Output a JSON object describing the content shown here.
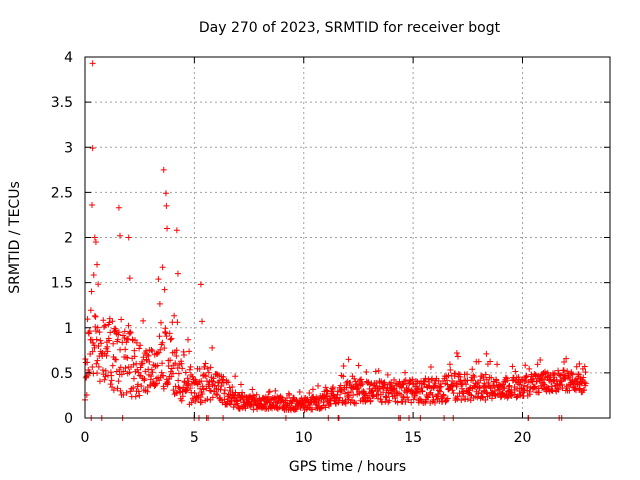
{
  "chart_data": {
    "type": "scatter",
    "title": "Day 270 of 2023, SRMTID for receiver bogt",
    "xlabel": "GPS time / hours",
    "ylabel": "SRMTID / TECUs",
    "xlim": [
      0,
      24
    ],
    "ylim": [
      0,
      4
    ],
    "x_ticks": [
      0,
      5,
      10,
      15,
      20
    ],
    "x_tick_labels": [
      "0",
      "5",
      "10",
      "15",
      "20"
    ],
    "y_ticks": [
      0,
      0.5,
      1,
      1.5,
      2,
      2.5,
      3,
      3.5,
      4
    ],
    "y_tick_labels": [
      "0",
      "0.5",
      "1",
      "1.5",
      "2",
      "2.5",
      "3",
      "3.5",
      "4"
    ],
    "grid": true,
    "marker": "+",
    "color": "#ff0000",
    "x_data_range": [
      0,
      22.9
    ],
    "sampling_interval_hours": 0.0167,
    "series": [
      {
        "name": "SRMTID",
        "profile": [
          {
            "x": 0.0,
            "typical": 0.45,
            "spread": 0.25
          },
          {
            "x": 0.3,
            "typical": 0.9,
            "spread": 0.55
          },
          {
            "x": 0.6,
            "typical": 0.6,
            "spread": 0.45
          },
          {
            "x": 1.0,
            "typical": 0.8,
            "spread": 0.4
          },
          {
            "x": 1.5,
            "typical": 0.7,
            "spread": 0.45
          },
          {
            "x": 2.0,
            "typical": 0.6,
            "spread": 0.4
          },
          {
            "x": 2.5,
            "typical": 0.55,
            "spread": 0.3
          },
          {
            "x": 3.0,
            "typical": 0.5,
            "spread": 0.25
          },
          {
            "x": 3.5,
            "typical": 0.75,
            "spread": 0.45
          },
          {
            "x": 4.0,
            "typical": 0.5,
            "spread": 0.35
          },
          {
            "x": 4.5,
            "typical": 0.4,
            "spread": 0.25
          },
          {
            "x": 5.0,
            "typical": 0.35,
            "spread": 0.2
          },
          {
            "x": 5.5,
            "typical": 0.4,
            "spread": 0.22
          },
          {
            "x": 6.0,
            "typical": 0.35,
            "spread": 0.18
          },
          {
            "x": 6.5,
            "typical": 0.28,
            "spread": 0.14
          },
          {
            "x": 7.0,
            "typical": 0.2,
            "spread": 0.1
          },
          {
            "x": 8.0,
            "typical": 0.16,
            "spread": 0.07
          },
          {
            "x": 9.0,
            "typical": 0.17,
            "spread": 0.08
          },
          {
            "x": 10.0,
            "typical": 0.15,
            "spread": 0.07
          },
          {
            "x": 11.0,
            "typical": 0.2,
            "spread": 0.09
          },
          {
            "x": 12.0,
            "typical": 0.3,
            "spread": 0.15
          },
          {
            "x": 13.0,
            "typical": 0.3,
            "spread": 0.12
          },
          {
            "x": 14.0,
            "typical": 0.28,
            "spread": 0.12
          },
          {
            "x": 15.0,
            "typical": 0.3,
            "spread": 0.13
          },
          {
            "x": 16.0,
            "typical": 0.3,
            "spread": 0.15
          },
          {
            "x": 17.0,
            "typical": 0.35,
            "spread": 0.15
          },
          {
            "x": 18.0,
            "typical": 0.33,
            "spread": 0.14
          },
          {
            "x": 19.0,
            "typical": 0.33,
            "spread": 0.12
          },
          {
            "x": 20.0,
            "typical": 0.35,
            "spread": 0.12
          },
          {
            "x": 21.0,
            "typical": 0.4,
            "spread": 0.12
          },
          {
            "x": 22.0,
            "typical": 0.42,
            "spread": 0.12
          },
          {
            "x": 22.9,
            "typical": 0.38,
            "spread": 0.1
          }
        ],
        "peaks": [
          {
            "x": 0.35,
            "y": 3.93
          },
          {
            "x": 0.35,
            "y": 2.99
          },
          {
            "x": 0.32,
            "y": 2.36
          },
          {
            "x": 0.45,
            "y": 2.0
          },
          {
            "x": 0.5,
            "y": 1.95
          },
          {
            "x": 0.55,
            "y": 1.7
          },
          {
            "x": 1.55,
            "y": 2.33
          },
          {
            "x": 1.6,
            "y": 2.02
          },
          {
            "x": 2.0,
            "y": 2.0
          },
          {
            "x": 2.05,
            "y": 1.55
          },
          {
            "x": 3.6,
            "y": 2.75
          },
          {
            "x": 3.7,
            "y": 2.49
          },
          {
            "x": 3.72,
            "y": 2.35
          },
          {
            "x": 3.75,
            "y": 2.1
          },
          {
            "x": 3.55,
            "y": 1.67
          },
          {
            "x": 4.2,
            "y": 2.08
          },
          {
            "x": 4.25,
            "y": 1.6
          },
          {
            "x": 5.3,
            "y": 1.48
          },
          {
            "x": 5.35,
            "y": 1.07
          },
          {
            "x": 12.05,
            "y": 0.65
          },
          {
            "x": 17.0,
            "y": 0.72
          },
          {
            "x": 18.35,
            "y": 0.71
          },
          {
            "x": 21.9,
            "y": 0.62
          },
          {
            "x": 22.6,
            "y": 0.6
          }
        ]
      }
    ]
  }
}
